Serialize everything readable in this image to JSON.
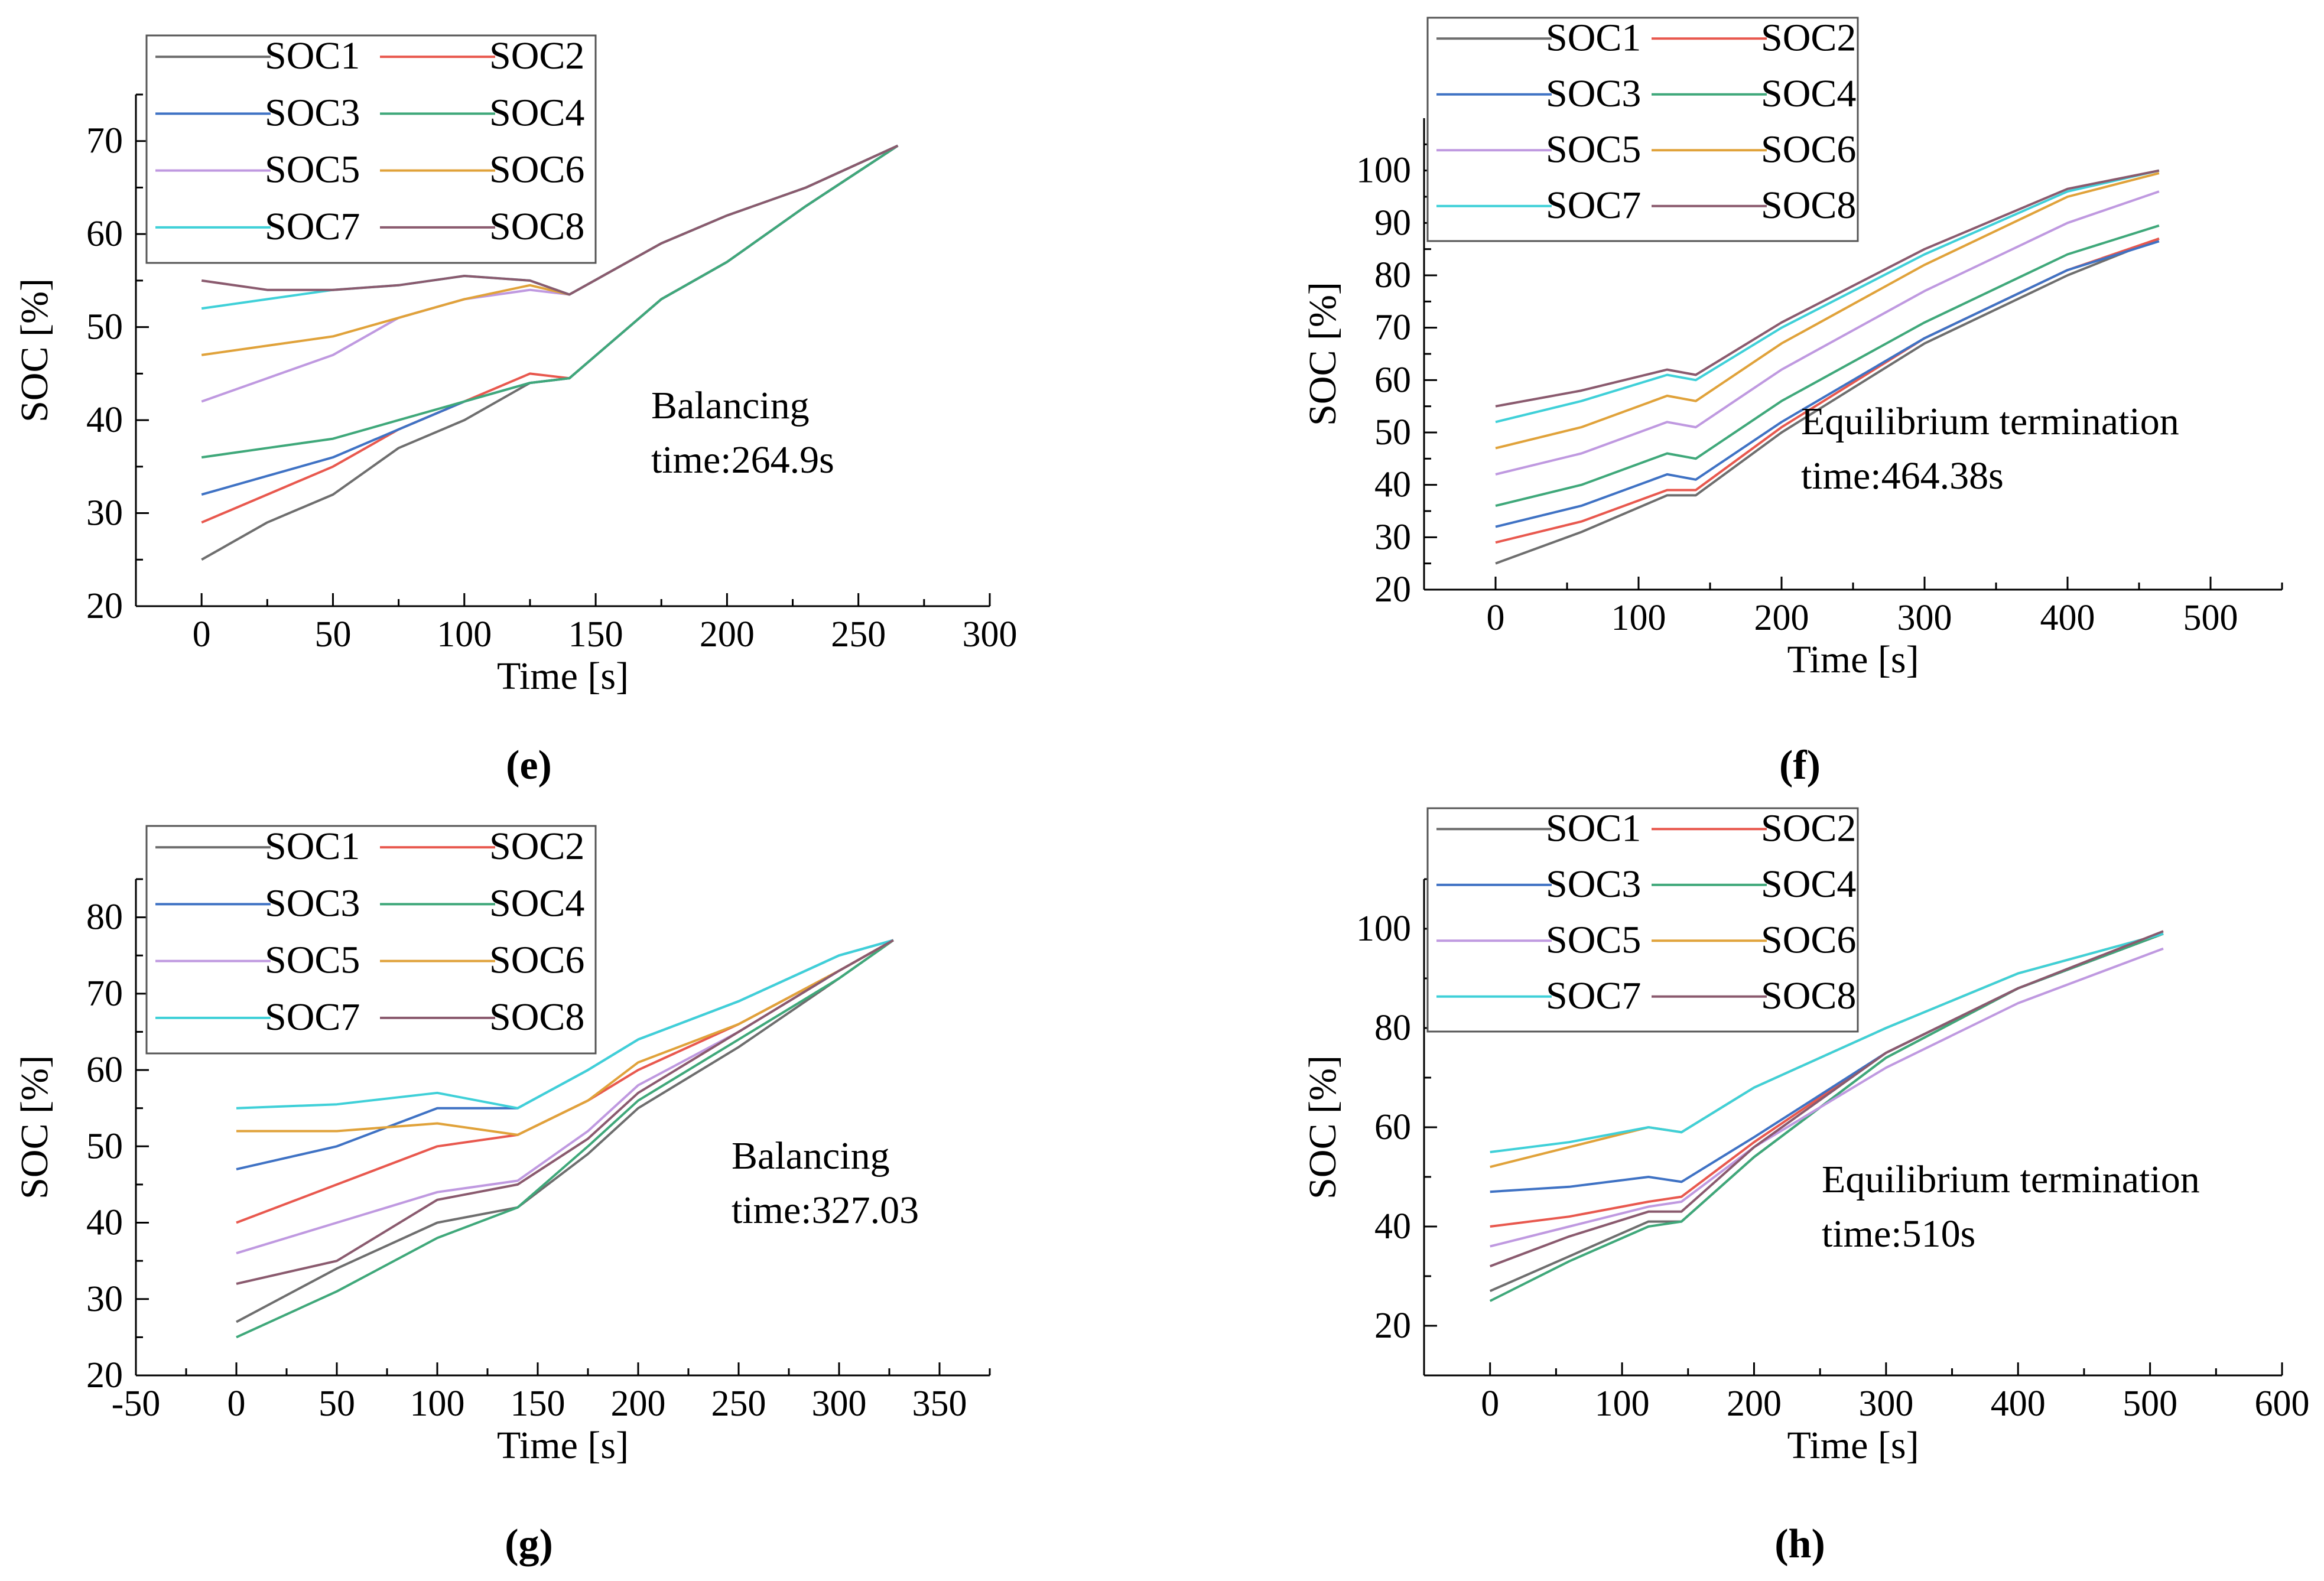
{
  "colors": {
    "SOC1": "#6e6e6e",
    "SOC2": "#e8584e",
    "SOC3": "#3f72c4",
    "SOC4": "#3fa87a",
    "SOC5": "#bf99e0",
    "SOC6": "#e0a23a",
    "SOC7": "#3fd0d8",
    "SOC8": "#8a5a6e"
  },
  "chart_data": [
    {
      "id": "e",
      "type": "line",
      "caption": "(e)",
      "xlabel": "Time [s]",
      "ylabel": "SOC [%]",
      "xlim": [
        -25,
        300
      ],
      "ylim": [
        20,
        75
      ],
      "xticks": [
        0,
        50,
        100,
        150,
        200,
        250,
        300
      ],
      "yticks": [
        20,
        30,
        40,
        50,
        60,
        70
      ],
      "annotation": [
        "Balancing",
        "time:264.9s"
      ],
      "legend": [
        "SOC1",
        "SOC2",
        "SOC3",
        "SOC4",
        "SOC5",
        "SOC6",
        "SOC7",
        "SOC8"
      ],
      "series": [
        {
          "name": "SOC1",
          "x": [
            0,
            25,
            50,
            75,
            100,
            125,
            140,
            175,
            200,
            230,
            265
          ],
          "y": [
            25,
            29,
            32,
            37,
            40,
            44,
            44.5,
            53,
            57,
            63,
            69.5
          ]
        },
        {
          "name": "SOC2",
          "x": [
            0,
            25,
            50,
            75,
            100,
            125,
            140,
            175,
            200,
            230,
            265
          ],
          "y": [
            29,
            32,
            35,
            39,
            42,
            45,
            44.5,
            53,
            57,
            63,
            69.5
          ]
        },
        {
          "name": "SOC3",
          "x": [
            0,
            25,
            50,
            75,
            100,
            125,
            140,
            175,
            200,
            230,
            265
          ],
          "y": [
            32,
            34,
            36,
            39,
            42,
            44,
            44.5,
            53,
            57,
            63,
            69.5
          ]
        },
        {
          "name": "SOC4",
          "x": [
            0,
            25,
            50,
            75,
            100,
            125,
            140,
            175,
            200,
            230,
            265
          ],
          "y": [
            36,
            37,
            38,
            40,
            42,
            44,
            44.5,
            53,
            57,
            63,
            69.5
          ]
        },
        {
          "name": "SOC5",
          "x": [
            0,
            25,
            50,
            75,
            100,
            125,
            140,
            175,
            200,
            230,
            265
          ],
          "y": [
            42,
            44.5,
            47,
            51,
            53,
            54,
            53.5,
            59,
            62,
            65,
            69.5
          ]
        },
        {
          "name": "SOC6",
          "x": [
            0,
            25,
            50,
            75,
            100,
            125,
            140,
            175,
            200,
            230,
            265
          ],
          "y": [
            47,
            48,
            49,
            51,
            53,
            54.5,
            53.5,
            59,
            62,
            65,
            69.5
          ]
        },
        {
          "name": "SOC7",
          "x": [
            0,
            25,
            50,
            75,
            100,
            125,
            140,
            175,
            200,
            230,
            265
          ],
          "y": [
            52,
            53,
            54,
            54.5,
            55.5,
            55,
            53.5,
            59,
            62,
            65,
            69.5
          ]
        },
        {
          "name": "SOC8",
          "x": [
            0,
            25,
            50,
            75,
            100,
            125,
            140,
            175,
            200,
            230,
            265
          ],
          "y": [
            55,
            54,
            54,
            54.5,
            55.5,
            55,
            53.5,
            59,
            62,
            65,
            69.5
          ]
        }
      ]
    },
    {
      "id": "f",
      "type": "line",
      "caption": "(f)",
      "xlabel": "Time [s]",
      "ylabel": "SOC [%]",
      "xlim": [
        -50,
        550
      ],
      "ylim": [
        20,
        110
      ],
      "xticks": [
        0,
        100,
        200,
        300,
        400,
        500
      ],
      "yticks": [
        20,
        30,
        40,
        50,
        60,
        70,
        80,
        90,
        100
      ],
      "annotation": [
        "Equilibrium termination",
        "time:464.38s"
      ],
      "legend": [
        "SOC1",
        "SOC2",
        "SOC3",
        "SOC4",
        "SOC5",
        "SOC6",
        "SOC7",
        "SOC8"
      ],
      "series": [
        {
          "name": "SOC1",
          "x": [
            0,
            60,
            120,
            140,
            200,
            300,
            400,
            464
          ],
          "y": [
            25,
            31,
            38,
            38,
            50,
            67,
            80,
            87
          ]
        },
        {
          "name": "SOC2",
          "x": [
            0,
            60,
            120,
            140,
            200,
            300,
            400,
            464
          ],
          "y": [
            29,
            33,
            39,
            39,
            51,
            68,
            81,
            87
          ]
        },
        {
          "name": "SOC3",
          "x": [
            0,
            60,
            120,
            140,
            200,
            300,
            400,
            464
          ],
          "y": [
            32,
            36,
            42,
            41,
            52,
            68,
            81,
            86.5
          ]
        },
        {
          "name": "SOC4",
          "x": [
            0,
            60,
            120,
            140,
            200,
            300,
            400,
            464
          ],
          "y": [
            36,
            40,
            46,
            45,
            56,
            71,
            84,
            89.5
          ]
        },
        {
          "name": "SOC5",
          "x": [
            0,
            60,
            120,
            140,
            200,
            300,
            400,
            464
          ],
          "y": [
            42,
            46,
            52,
            51,
            62,
            77,
            90,
            96
          ]
        },
        {
          "name": "SOC6",
          "x": [
            0,
            60,
            120,
            140,
            200,
            300,
            400,
            464
          ],
          "y": [
            47,
            51,
            57,
            56,
            67,
            82,
            95,
            99.5
          ]
        },
        {
          "name": "SOC7",
          "x": [
            0,
            60,
            120,
            140,
            200,
            300,
            400,
            464
          ],
          "y": [
            52,
            56,
            61,
            60,
            70,
            84,
            96,
            100
          ]
        },
        {
          "name": "SOC8",
          "x": [
            0,
            60,
            120,
            140,
            200,
            300,
            400,
            464
          ],
          "y": [
            55,
            58,
            62,
            61,
            71,
            85,
            96.5,
            100
          ]
        }
      ]
    },
    {
      "id": "g",
      "type": "line",
      "caption": "(g)",
      "xlabel": "Time [s]",
      "ylabel": "SOC [%]",
      "xlim": [
        -50,
        375
      ],
      "ylim": [
        20,
        85
      ],
      "xticks": [
        -50,
        0,
        50,
        100,
        150,
        200,
        250,
        300,
        350
      ],
      "yticks": [
        20,
        30,
        40,
        50,
        60,
        70,
        80
      ],
      "annotation": [
        "Balancing",
        "time:327.03"
      ],
      "legend": [
        "SOC1",
        "SOC2",
        "SOC3",
        "SOC4",
        "SOC5",
        "SOC6",
        "SOC7",
        "SOC8"
      ],
      "series": [
        {
          "name": "SOC1",
          "x": [
            0,
            50,
            100,
            140,
            175,
            200,
            250,
            300,
            327
          ],
          "y": [
            27,
            34,
            40,
            42,
            49,
            55,
            63,
            72,
            77
          ]
        },
        {
          "name": "SOC2",
          "x": [
            0,
            50,
            100,
            140,
            175,
            200,
            250,
            300,
            327
          ],
          "y": [
            40,
            45,
            50,
            51.5,
            56,
            60,
            66,
            73,
            77
          ]
        },
        {
          "name": "SOC3",
          "x": [
            0,
            50,
            100,
            140,
            175,
            200,
            250,
            300,
            327
          ],
          "y": [
            47,
            50,
            55,
            55,
            60,
            64,
            69,
            75,
            77
          ]
        },
        {
          "name": "SOC4",
          "x": [
            0,
            50,
            100,
            140,
            175,
            200,
            250,
            300,
            327
          ],
          "y": [
            25,
            31,
            38,
            42,
            50,
            56,
            64,
            72,
            77
          ]
        },
        {
          "name": "SOC5",
          "x": [
            0,
            50,
            100,
            140,
            175,
            200,
            250,
            300,
            327
          ],
          "y": [
            36,
            40,
            44,
            45.5,
            52,
            58,
            65,
            73,
            77
          ]
        },
        {
          "name": "SOC6",
          "x": [
            0,
            50,
            100,
            140,
            175,
            200,
            250,
            300,
            327
          ],
          "y": [
            52,
            52,
            53,
            51.5,
            56,
            61,
            66,
            73,
            77
          ]
        },
        {
          "name": "SOC7",
          "x": [
            0,
            50,
            100,
            140,
            175,
            200,
            250,
            300,
            327
          ],
          "y": [
            55,
            55.5,
            57,
            55,
            60,
            64,
            69,
            75,
            77
          ]
        },
        {
          "name": "SOC8",
          "x": [
            0,
            50,
            100,
            140,
            175,
            200,
            250,
            300,
            327
          ],
          "y": [
            32,
            35,
            43,
            45,
            51,
            57,
            65,
            73,
            77
          ]
        }
      ]
    },
    {
      "id": "h",
      "type": "line",
      "caption": "(h)",
      "xlabel": "Time [s]",
      "ylabel": "SOC [%]",
      "xlim": [
        -50,
        600
      ],
      "ylim": [
        10,
        110
      ],
      "xticks": [
        0,
        100,
        200,
        300,
        400,
        500,
        600
      ],
      "yticks": [
        20,
        40,
        60,
        80,
        100
      ],
      "annotation": [
        "Equilibrium termination",
        "time:510s"
      ],
      "legend": [
        "SOC1",
        "SOC2",
        "SOC3",
        "SOC4",
        "SOC5",
        "SOC6",
        "SOC7",
        "SOC8"
      ],
      "series": [
        {
          "name": "SOC1",
          "x": [
            0,
            60,
            120,
            145,
            200,
            300,
            400,
            510
          ],
          "y": [
            27,
            34,
            41,
            41,
            54,
            74,
            88,
            99
          ]
        },
        {
          "name": "SOC2",
          "x": [
            0,
            60,
            120,
            145,
            200,
            300,
            400,
            510
          ],
          "y": [
            40,
            42,
            45,
            46,
            57,
            75,
            88,
            99
          ]
        },
        {
          "name": "SOC3",
          "x": [
            0,
            60,
            120,
            145,
            200,
            300,
            400,
            510
          ],
          "y": [
            47,
            48,
            50,
            49,
            58,
            75,
            88,
            99
          ]
        },
        {
          "name": "SOC4",
          "x": [
            0,
            60,
            120,
            145,
            200,
            300,
            400,
            510
          ],
          "y": [
            25,
            33,
            40,
            41,
            54,
            74,
            88,
            99
          ]
        },
        {
          "name": "SOC5",
          "x": [
            0,
            60,
            120,
            145,
            200,
            300,
            400,
            510
          ],
          "y": [
            36,
            40,
            44,
            45,
            56,
            72,
            85,
            96
          ]
        },
        {
          "name": "SOC6",
          "x": [
            0,
            60,
            120,
            145,
            200,
            300,
            400,
            510
          ],
          "y": [
            52,
            56,
            60,
            59,
            68,
            80,
            91,
            99
          ]
        },
        {
          "name": "SOC7",
          "x": [
            0,
            60,
            120,
            145,
            200,
            300,
            400,
            510
          ],
          "y": [
            55,
            57,
            60,
            59,
            68,
            80,
            91,
            99
          ]
        },
        {
          "name": "SOC8",
          "x": [
            0,
            60,
            120,
            145,
            200,
            300,
            400,
            510
          ],
          "y": [
            32,
            38,
            43,
            43,
            56,
            75,
            88,
            99.5
          ]
        }
      ]
    }
  ]
}
